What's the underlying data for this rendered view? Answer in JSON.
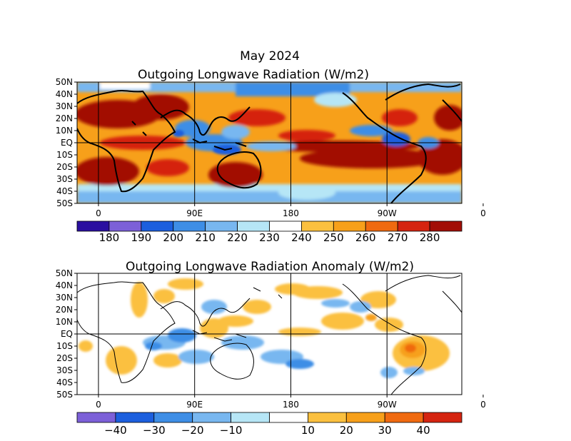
{
  "figure": {
    "title": "May 2024"
  },
  "chart_data": [
    {
      "type": "heatmap",
      "title": "Outgoing Longwave Radiation (W/m2)",
      "xlabel": "",
      "ylabel": "",
      "x_ticks": [
        "0",
        "90E",
        "180",
        "90W",
        "0"
      ],
      "y_ticks": [
        "50N",
        "40N",
        "30N",
        "20N",
        "10N",
        "EQ",
        "10S",
        "20S",
        "30S",
        "40S",
        "50S"
      ],
      "xlim_deg_east": [
        -20,
        340
      ],
      "ylim_lat": [
        -50,
        50
      ],
      "grid_longitudes_deg_east": [
        0,
        90,
        180,
        270
      ],
      "grid_latitudes": [
        0
      ],
      "colorbar": {
        "ticks": [
          "180",
          "190",
          "200",
          "210",
          "220",
          "230",
          "240",
          "250",
          "260",
          "270",
          "280"
        ],
        "colors": [
          "#2a0fa0",
          "#7c60d8",
          "#1c5fde",
          "#3e8ee6",
          "#78b7f0",
          "#b6e6f6",
          "#ffffff",
          "#fbc03f",
          "#f7a01a",
          "#f06a10",
          "#d52410",
          "#a20e06"
        ]
      },
      "regions": [
        {
          "region": "Sahara / North Africa",
          "level": "270-280+"
        },
        {
          "region": "Arabia / Southwest Asia",
          "level": "280+"
        },
        {
          "region": "Southern Africa",
          "level": "280+"
        },
        {
          "region": "Australia",
          "level": "270-280+"
        },
        {
          "region": "Southeast Pacific (10S-30S)",
          "level": "280+"
        },
        {
          "region": "Maritime Continent",
          "level": "190-230"
        },
        {
          "region": "Bay of Bengal / Indochina",
          "level": "200-230"
        },
        {
          "region": "Western Pacific ITCZ",
          "level": "210-240"
        },
        {
          "region": "Northern South America / Amazon",
          "level": "200-230"
        },
        {
          "region": "Mid-latitude storm tracks (40-50N/S)",
          "level": "200-240"
        }
      ]
    },
    {
      "type": "heatmap",
      "title": "Outgoing Longwave Radiation Anomaly (W/m2)",
      "xlabel": "",
      "ylabel": "",
      "x_ticks": [
        "0",
        "90E",
        "180",
        "90W",
        "0"
      ],
      "y_ticks": [
        "50N",
        "40N",
        "30N",
        "20N",
        "10N",
        "EQ",
        "10S",
        "20S",
        "30S",
        "40S",
        "50S"
      ],
      "xlim_deg_east": [
        -20,
        340
      ],
      "ylim_lat": [
        -50,
        50
      ],
      "grid_longitudes_deg_east": [
        0,
        90,
        180,
        270
      ],
      "grid_latitudes": [
        0
      ],
      "colorbar": {
        "ticks": [
          "−40",
          "−30",
          "−20",
          "−10",
          "10",
          "20",
          "30",
          "40"
        ],
        "colors": [
          "#7c60d8",
          "#1c5fde",
          "#3e8ee6",
          "#78b7f0",
          "#b6e6f6",
          "#ffffff",
          "#fbc03f",
          "#f7a01a",
          "#f06a10",
          "#d52410"
        ]
      },
      "regions": [
        {
          "region": "Eastern Brazil (15S)",
          "level": "+20 to +30"
        },
        {
          "region": "Southern Africa",
          "level": "+10 to +20"
        },
        {
          "region": "Indian Ocean / Maritime Continent",
          "level": "-10 to -20"
        },
        {
          "region": "South Pacific Convergence Zone",
          "level": "-10 to -20"
        },
        {
          "region": "Central Pacific (20-35N)",
          "level": "+10"
        },
        {
          "region": "West Pacific (15-20N)",
          "level": "-10 to -20"
        }
      ]
    }
  ]
}
